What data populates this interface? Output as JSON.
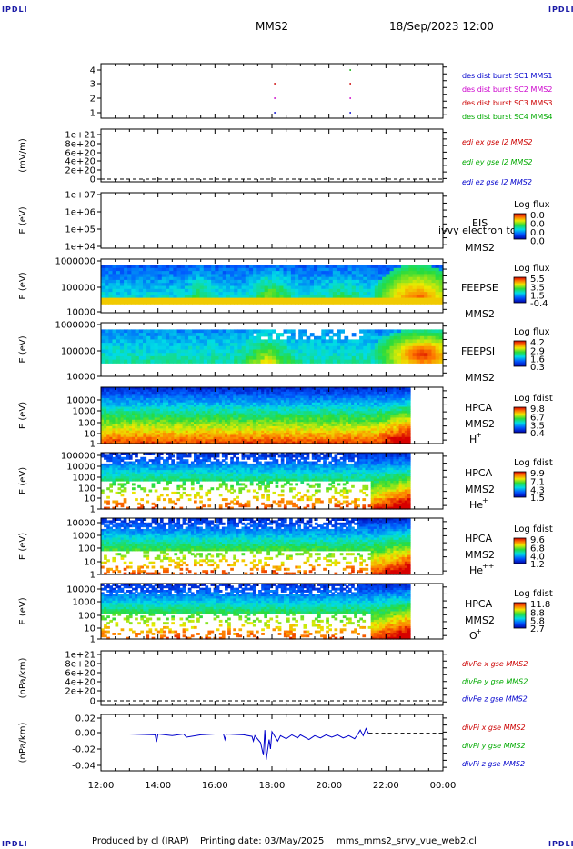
{
  "header": {
    "corner_label": "IPDLI",
    "title": "MMS2",
    "date": "18/Sep/2023 12:00"
  },
  "footer": {
    "produced_by": "Produced by cl (IRAP)",
    "printing_date": "Printing date: 03/May/2025",
    "script_name": "mms_mms2_srvy_vue_web2.cl"
  },
  "chart_data": [
    {
      "panel": "burst",
      "type": "scatter",
      "yticks": [
        "4",
        "3",
        "2",
        "1"
      ],
      "series": [
        {
          "name": "des dist burst SC1 MMS1",
          "color": "#0000cc",
          "level": 1,
          "x": [
            18.1,
            20.75
          ]
        },
        {
          "name": "des dist burst SC2 MMS2",
          "color": "#cc00cc",
          "level": 2,
          "x": [
            18.1,
            20.75
          ]
        },
        {
          "name": "des dist burst SC3 MMS3",
          "color": "#cc0000",
          "level": 3,
          "x": [
            18.1,
            20.75
          ]
        },
        {
          "name": "des dist burst SC4 MMS4",
          "color": "#00aa00",
          "level": 4,
          "x": [
            20.75
          ]
        }
      ]
    },
    {
      "panel": "edi",
      "type": "line",
      "ylabel": "(mV/m)",
      "yticks": [
        "1e+21",
        "8e+20",
        "6e+20",
        "4e+20",
        "2e+20",
        "0"
      ],
      "legend": [
        {
          "name": "edi ex gse l2 MMS2",
          "color": "#cc0000"
        },
        {
          "name": "edi ey gse l2 MMS2",
          "color": "#00aa00"
        },
        {
          "name": "edi ez gse l2 MMS2",
          "color": "#0000cc"
        }
      ]
    },
    {
      "panel": "eis",
      "type": "heatmap",
      "ylabel": "E (eV)",
      "yticks": [
        "1e+07",
        "1e+06",
        "1e+05",
        "1e+04"
      ],
      "label": "EIS",
      "label2": "MMS2",
      "overlay": "ivvy electron to",
      "colorbar": {
        "title": "Log flux",
        "ticks": [
          "0.0",
          "0.0",
          "0.0",
          "0.0"
        ]
      }
    },
    {
      "panel": "feeps_e",
      "type": "heatmap",
      "ylabel": "E (eV)",
      "yticks": [
        "1000000",
        "100000",
        "10000"
      ],
      "label": "FEEPSE",
      "label2": "MMS2",
      "colorbar": {
        "title": "Log flux",
        "ticks": [
          "5.5",
          "3.5",
          "1.5",
          "-0.4"
        ]
      }
    },
    {
      "panel": "feeps_i",
      "type": "heatmap",
      "ylabel": "E (eV)",
      "yticks": [
        "1000000",
        "100000",
        "10000"
      ],
      "label": "FEEPSI",
      "label2": "MMS2",
      "colorbar": {
        "title": "Log flux",
        "ticks": [
          "4.2",
          "2.9",
          "1.6",
          "0.3"
        ]
      }
    },
    {
      "panel": "hpca_h",
      "type": "heatmap",
      "ylabel": "E (eV)",
      "yticks": [
        "10000",
        "1000",
        "100",
        "10",
        "1"
      ],
      "label": "HPCA",
      "label2": "MMS2",
      "species": "H",
      "species_charge": "+",
      "colorbar": {
        "title": "Log fdist",
        "ticks": [
          "9.8",
          "6.7",
          "3.5",
          "0.4"
        ]
      }
    },
    {
      "panel": "hpca_he1",
      "type": "heatmap",
      "ylabel": "E (eV)",
      "yticks": [
        "100000",
        "10000",
        "1000",
        "100",
        "10",
        "1"
      ],
      "label": "HPCA",
      "label2": "MMS2",
      "species": "He",
      "species_charge": "+",
      "colorbar": {
        "title": "Log fdist",
        "ticks": [
          "9.9",
          "7.1",
          "4.3",
          "1.5"
        ]
      }
    },
    {
      "panel": "hpca_he2",
      "type": "heatmap",
      "ylabel": "E (eV)",
      "yticks": [
        "10000",
        "1000",
        "100",
        "10",
        "1"
      ],
      "label": "HPCA",
      "label2": "MMS2",
      "species": "He",
      "species_charge": "++",
      "colorbar": {
        "title": "Log fdist",
        "ticks": [
          "9.6",
          "6.8",
          "4.0",
          "1.2"
        ]
      }
    },
    {
      "panel": "hpca_o",
      "type": "heatmap",
      "ylabel": "E (eV)",
      "yticks": [
        "10000",
        "1000",
        "100",
        "10",
        "1"
      ],
      "label": "HPCA",
      "label2": "MMS2",
      "species": "O",
      "species_charge": "+",
      "colorbar": {
        "title": "Log fdist",
        "ticks": [
          "11.8",
          "8.8",
          "5.8",
          "2.7"
        ]
      }
    },
    {
      "panel": "divpe",
      "type": "line",
      "ylabel": "(nPa/km)",
      "yticks": [
        "1e+21",
        "8e+20",
        "6e+20",
        "4e+20",
        "2e+20",
        "0"
      ],
      "legend": [
        {
          "name": "divPe x gse MMS2",
          "color": "#cc0000"
        },
        {
          "name": "divPe y gse MMS2",
          "color": "#00aa00"
        },
        {
          "name": "divPe z gse MMS2",
          "color": "#0000cc"
        }
      ]
    },
    {
      "panel": "divpi",
      "type": "line",
      "ylabel": "(nPa/km)",
      "yticks": [
        "0.02",
        "0.00",
        "-0.02",
        "-0.04"
      ],
      "ylim": [
        -0.048,
        0.024
      ],
      "legend": [
        {
          "name": "divPi x gse MMS2",
          "color": "#cc0000"
        },
        {
          "name": "divPi y gse MMS2",
          "color": "#00aa00"
        },
        {
          "name": "divPi z gse MMS2",
          "color": "#0000cc"
        }
      ],
      "series": [
        {
          "name": "divPi z gse MMS2",
          "color": "#0000cc",
          "x": [
            12.0,
            13.0,
            13.9,
            13.95,
            14.0,
            14.5,
            14.9,
            15.0,
            15.5,
            16.0,
            16.3,
            16.35,
            16.4,
            17.0,
            17.3,
            17.35,
            17.4,
            17.6,
            17.7,
            17.75,
            17.8,
            17.9,
            17.95,
            18.0,
            18.2,
            18.3,
            18.5,
            18.7,
            18.9,
            19.0,
            19.3,
            19.5,
            19.7,
            19.9,
            20.1,
            20.3,
            20.5,
            20.7,
            20.9,
            21.0,
            21.1,
            21.2,
            21.3,
            21.4
          ],
          "y": [
            -0.001,
            -0.001,
            -0.002,
            -0.011,
            -0.001,
            -0.003,
            -0.001,
            -0.005,
            -0.002,
            -0.001,
            -0.001,
            -0.008,
            -0.001,
            -0.002,
            -0.004,
            -0.01,
            -0.003,
            -0.012,
            -0.028,
            0.004,
            -0.034,
            -0.008,
            -0.02,
            0.002,
            -0.01,
            -0.003,
            -0.007,
            -0.002,
            -0.006,
            -0.002,
            -0.008,
            -0.003,
            -0.006,
            -0.002,
            -0.005,
            -0.002,
            -0.006,
            -0.003,
            -0.007,
            -0.002,
            0.004,
            -0.003,
            0.006,
            -0.001
          ]
        }
      ]
    }
  ],
  "x_axis": {
    "ticks": [
      "12:00",
      "14:00",
      "16:00",
      "18:00",
      "20:00",
      "22:00",
      "00:00"
    ],
    "range_hours": [
      12,
      24
    ]
  }
}
